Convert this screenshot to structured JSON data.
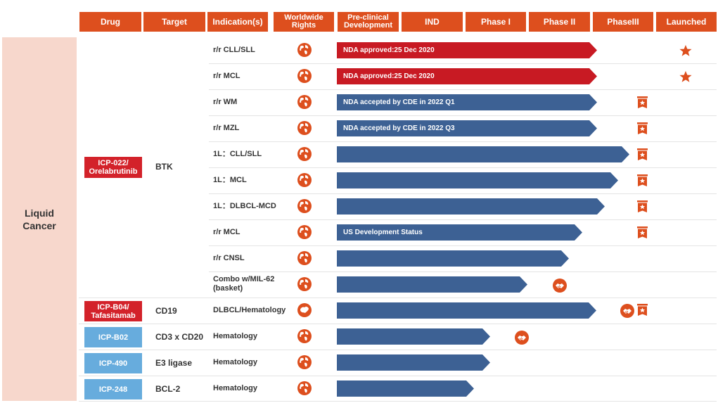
{
  "headers": {
    "drug": "Drug",
    "target": "Target",
    "indications": "Indication(s)",
    "rights": "Worldwide\nRights",
    "preclinical": "Pre-clinical\nDevelopment",
    "ind": "IND",
    "phase1": "Phase I",
    "phase2": "Phase II",
    "phase3": "PhaseIII",
    "launched": "Launched"
  },
  "category": "Liquid\nCancer",
  "drugs": {
    "d1": "ICP-022/ Orelabrutinib",
    "d2": "ICP-B04/ Tafasitamab",
    "d3": "ICP-B02",
    "d4": "ICP-490",
    "d5": "ICP-248"
  },
  "targets": {
    "t1": "BTK",
    "t2": "CD19",
    "t3": "CD3 x CD20",
    "t4": "E3 ligase",
    "t5": "BCL-2"
  },
  "rows": [
    {
      "indication": "r/r CLL/SLL",
      "bar_label": "NDA approved:25 Dec 2020",
      "stage": "Launched"
    },
    {
      "indication": "r/r MCL",
      "bar_label": "NDA approved:25 Dec 2020",
      "stage": "Launched"
    },
    {
      "indication": "r/r WM",
      "bar_label": "NDA accepted by CDE in 2022 Q1",
      "stage": "PhaseIII"
    },
    {
      "indication": "r/r MZL",
      "bar_label": "NDA accepted by CDE in 2022 Q3",
      "stage": "PhaseIII"
    },
    {
      "indication": "1L：CLL/SLL",
      "bar_label": "",
      "stage": "PhaseIII"
    },
    {
      "indication": "1L：MCL",
      "bar_label": "",
      "stage": "PhaseIII"
    },
    {
      "indication": "1L：DLBCL-MCD",
      "bar_label": "",
      "stage": "PhaseIII"
    },
    {
      "indication": "r/r MCL",
      "bar_label": "US Development Status",
      "stage": "Phase II"
    },
    {
      "indication": "r/r CNSL",
      "bar_label": "",
      "stage": "Phase II"
    },
    {
      "indication": "Combo w/MIL-62\n(basket)",
      "bar_label": "",
      "stage": "Phase II"
    },
    {
      "indication": "DLBCL/Hematology",
      "bar_label": "",
      "stage": "Phase II"
    },
    {
      "indication": "Hematology",
      "bar_label": "",
      "stage": "Phase I"
    },
    {
      "indication": "Hematology",
      "bar_label": "",
      "stage": "Phase I"
    },
    {
      "indication": "Hematology",
      "bar_label": "",
      "stage": "Phase I"
    }
  ],
  "colors": {
    "header": "#dd4f1e",
    "bar_red": "#c81a23",
    "bar_blue": "#3d6194",
    "drug_red": "#d3222a",
    "drug_blue": "#67acdd",
    "category_bg": "#f7d7cc"
  }
}
